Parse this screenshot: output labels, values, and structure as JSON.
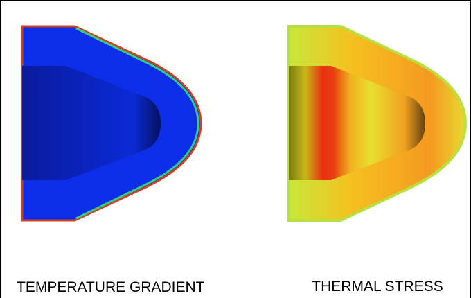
{
  "panels": [
    {
      "caption": "TEMPERATURE GRADIENT"
    },
    {
      "caption": "THERMAL STRESS"
    }
  ]
}
